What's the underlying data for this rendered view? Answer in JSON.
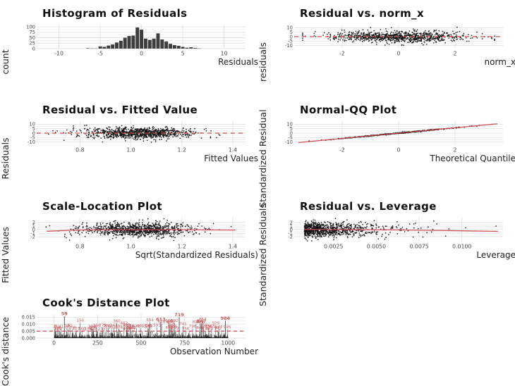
{
  "page": {
    "background": "#ffffff"
  },
  "colors": {
    "red_line": "#CC4949",
    "red_label": "#C45B5F",
    "point": "#111111",
    "bar": "#3E3E3E",
    "grid_major": "#E1E1E1",
    "grid_minor": "#EFEFEF",
    "tick_text": "#4A4A4A",
    "axis_text": "#1F1F1F",
    "title_text": "#111111"
  },
  "chart_data": [
    {
      "id": "histogram-of-residuals",
      "type": "histogram",
      "title": "Histogram of Residuals",
      "xlabel": "Residuals",
      "ylabel": "count",
      "xlim": [
        -12.7,
        12.6
      ],
      "ylim": [
        0,
        110
      ],
      "xticks": [
        {
          "v": -10,
          "label": "-10"
        },
        {
          "v": -5,
          "label": "-5"
        },
        {
          "v": 0,
          "label": "0"
        },
        {
          "v": 5,
          "label": "5"
        },
        {
          "v": 10,
          "label": "10"
        }
      ],
      "yticks": [
        {
          "v": 0,
          "label": "0"
        },
        {
          "v": 25,
          "label": "25"
        },
        {
          "v": 50,
          "label": "50"
        },
        {
          "v": 75,
          "label": "75"
        },
        {
          "v": 100,
          "label": "100"
        }
      ],
      "bins": {
        "width": 0.5,
        "centers": [
          -6.5,
          -6,
          -5.5,
          -5,
          -4.5,
          -4,
          -3.5,
          -3,
          -2.5,
          -2,
          -1.5,
          -1,
          -0.5,
          0,
          0.5,
          1,
          1.5,
          2,
          2.5,
          3,
          3.5,
          4,
          4.5,
          5,
          5.5,
          6,
          6.5,
          7
        ],
        "counts": [
          2,
          1,
          1,
          10,
          8,
          14,
          19,
          28,
          36,
          50,
          58,
          60,
          97,
          87,
          46,
          40,
          46,
          70,
          42,
          33,
          22,
          16,
          13,
          8,
          4,
          6,
          3,
          1
        ]
      }
    },
    {
      "id": "residual-vs-norm-x",
      "type": "scatter",
      "title": "Residual vs. norm_x",
      "xlabel": "norm_x",
      "ylabel": "residuals",
      "xlim": [
        -3.7,
        3.7
      ],
      "ylim": [
        -13.5,
        13.5
      ],
      "xticks": [
        {
          "v": -2,
          "label": "-2"
        },
        {
          "v": 0,
          "label": "0"
        },
        {
          "v": 2,
          "label": "2"
        }
      ],
      "yticks": [
        {
          "v": 10,
          "label": "10"
        },
        {
          "v": 5,
          "label": "5"
        },
        {
          "v": 0,
          "label": "0"
        },
        {
          "v": -5,
          "label": "-5"
        },
        {
          "v": -10,
          "label": "-10"
        }
      ],
      "n": 950,
      "seed": 7,
      "x_dist": {
        "kind": "normal",
        "mean": 0,
        "sd": 1.15,
        "min": -3.4,
        "max": 3.4
      },
      "y_dist": {
        "kind": "normal",
        "mean": 0,
        "sd": 3.1,
        "min": -11,
        "max": 11
      },
      "ref_line": {
        "kind": "hline",
        "y": 0,
        "dash": true
      }
    },
    {
      "id": "residual-vs-fitted",
      "type": "scatter",
      "title": "Residual vs. Fitted Value",
      "xlabel": "Fitted Values",
      "ylabel": "Residuals",
      "xlim": [
        0.63,
        1.45
      ],
      "ylim": [
        -13.5,
        13.5
      ],
      "xticks": [
        {
          "v": 0.8,
          "label": "0.8"
        },
        {
          "v": 1.0,
          "label": "1.0"
        },
        {
          "v": 1.2,
          "label": "1.2"
        },
        {
          "v": 1.4,
          "label": "1.4"
        }
      ],
      "yticks": [
        {
          "v": 10,
          "label": "10"
        },
        {
          "v": 5,
          "label": "5"
        },
        {
          "v": 0,
          "label": "0"
        },
        {
          "v": -5,
          "label": "-5"
        },
        {
          "v": -10,
          "label": "-10"
        }
      ],
      "n": 950,
      "seed": 13,
      "x_dist": {
        "kind": "normal",
        "mean": 1.03,
        "sd": 0.11,
        "min": 0.66,
        "max": 1.4
      },
      "y_dist": {
        "kind": "normal",
        "mean": 0,
        "sd": 3.1,
        "min": -11,
        "max": 11
      },
      "ref_line": {
        "kind": "hline",
        "y": 0,
        "dash": true
      }
    },
    {
      "id": "normal-qq",
      "type": "qq",
      "title": "Normal-QQ Plot",
      "xlabel": "Theoretical Quantile",
      "ylabel": "Standardized Residual",
      "xlim": [
        -3.7,
        3.7
      ],
      "ylim": [
        -13.5,
        13.5
      ],
      "xticks": [
        {
          "v": -2,
          "label": "-2"
        },
        {
          "v": 0,
          "label": "0"
        },
        {
          "v": 2,
          "label": "2"
        }
      ],
      "yticks": [
        {
          "v": 10,
          "label": "10"
        },
        {
          "v": 5,
          "label": "5"
        },
        {
          "v": 0,
          "label": "0"
        },
        {
          "v": -5,
          "label": "-5"
        },
        {
          "v": -10,
          "label": "-10"
        }
      ],
      "n": 430,
      "seed": 21,
      "x_sd": 1.12,
      "slope": 3.0,
      "noise": 0.28,
      "line": {
        "x1": -3.55,
        "y1": -10.6,
        "x2": 3.5,
        "y2": 10.5
      }
    },
    {
      "id": "scale-location",
      "type": "scatter",
      "title": "Scale-Location Plot",
      "xlabel": "Sqrt(Standardized Residuals)",
      "ylabel": "Fitted Values",
      "xlim": [
        0.63,
        1.45
      ],
      "ylim": [
        -3.3,
        3.3
      ],
      "xticks": [
        {
          "v": 0.8,
          "label": "0.8"
        },
        {
          "v": 1.0,
          "label": "1.0"
        },
        {
          "v": 1.2,
          "label": "1.2"
        },
        {
          "v": 1.4,
          "label": "1.4"
        }
      ],
      "yticks": [
        {
          "v": 2,
          "label": "2"
        },
        {
          "v": 1,
          "label": "1"
        },
        {
          "v": 0,
          "label": "0"
        },
        {
          "v": -1,
          "label": "-1"
        },
        {
          "v": -2,
          "label": "-2"
        }
      ],
      "n": 950,
      "seed": 31,
      "x_dist": {
        "kind": "normal",
        "mean": 1.03,
        "sd": 0.11,
        "min": 0.66,
        "max": 1.4
      },
      "y_dist": {
        "kind": "normal",
        "mean": 0,
        "sd": 0.95,
        "min": -3,
        "max": 3
      },
      "smooth_line": {
        "points": [
          [
            0.67,
            -0.45
          ],
          [
            0.78,
            -0.12
          ],
          [
            0.95,
            -0.02
          ],
          [
            1.15,
            -0.02
          ],
          [
            1.3,
            -0.08
          ],
          [
            1.41,
            -0.12
          ]
        ]
      }
    },
    {
      "id": "residual-vs-leverage",
      "type": "scatter",
      "title": "Residual vs. Leverage",
      "xlabel": "Leverage",
      "ylabel": "Standardized Residuals",
      "xlim": [
        0.0002,
        0.0124
      ],
      "ylim": [
        -3.4,
        3.4
      ],
      "xticks": [
        {
          "v": 0.0025,
          "label": "0.0025"
        },
        {
          "v": 0.005,
          "label": "0.0050"
        },
        {
          "v": 0.0075,
          "label": "0.0075"
        },
        {
          "v": 0.01,
          "label": "0.0100"
        }
      ],
      "yticks": [
        {
          "v": 2,
          "label": "2"
        },
        {
          "v": 1,
          "label": "1"
        },
        {
          "v": 0,
          "label": "0"
        },
        {
          "v": -1,
          "label": "-1"
        },
        {
          "v": -2,
          "label": "-2"
        }
      ],
      "n": 950,
      "seed": 41,
      "x_dist": {
        "kind": "exp",
        "offset": 0.0008,
        "mean": 0.0016,
        "max": 0.0121
      },
      "y_dist": {
        "kind": "normal",
        "mean": 0,
        "sd": 1.05,
        "min": -3.2,
        "max": 3.2
      },
      "smooth_line": {
        "points": [
          [
            0.0008,
            0.05
          ],
          [
            0.003,
            0.0
          ],
          [
            0.006,
            -0.08
          ],
          [
            0.009,
            -0.25
          ],
          [
            0.0121,
            -0.5
          ]
        ]
      }
    },
    {
      "id": "cooks-distance",
      "type": "spikes",
      "title": "Cook's Distance Plot",
      "xlabel": "Observation Number",
      "ylabel": "Cook's distance",
      "xlim": [
        -100,
        1100
      ],
      "ylim": [
        0,
        0.0172
      ],
      "xticks": [
        {
          "v": 0,
          "label": "0"
        },
        {
          "v": 250,
          "label": "250"
        },
        {
          "v": 500,
          "label": "500"
        },
        {
          "v": 750,
          "label": "750"
        },
        {
          "v": 1000,
          "label": "1000"
        }
      ],
      "yticks": [
        {
          "v": 0,
          "label": "0.000"
        },
        {
          "v": 0.005,
          "label": "0.005"
        },
        {
          "v": 0.01,
          "label": "0.010"
        },
        {
          "v": 0.015,
          "label": "0.015"
        }
      ],
      "n": 1000,
      "seed": 55,
      "base_scale": 0.0015,
      "threshold": {
        "y": 0.005,
        "dash": true
      },
      "label_threshold": 0.005,
      "notable": [
        {
          "x": 59,
          "y": 0.0158,
          "label": "59"
        },
        {
          "x": 613,
          "y": 0.0118,
          "label": "613"
        },
        {
          "x": 719,
          "y": 0.015,
          "label": "719"
        },
        {
          "x": 847,
          "y": 0.0106,
          "label": "847"
        },
        {
          "x": 984,
          "y": 0.0126,
          "label": "984"
        }
      ]
    }
  ]
}
